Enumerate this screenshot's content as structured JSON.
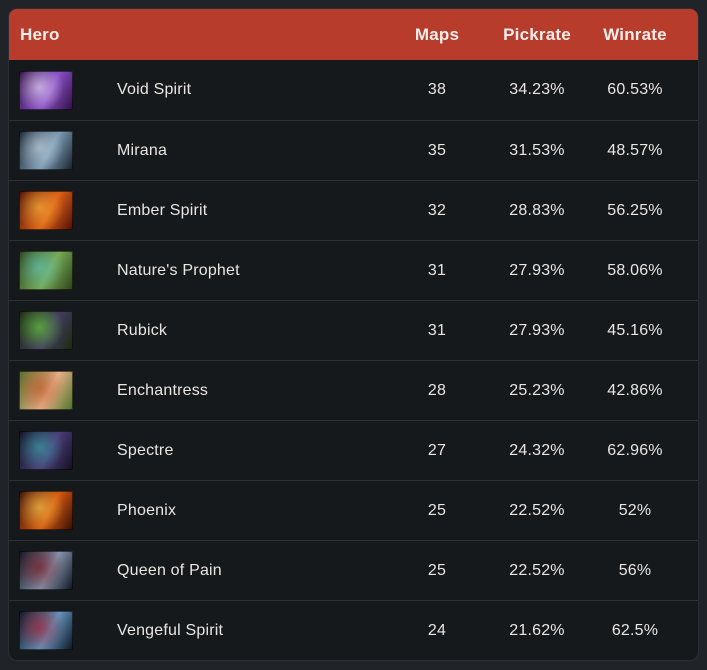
{
  "colors": {
    "page_bg": "#202428",
    "card_bg": "#16191b",
    "card_border": "#2b2f33",
    "header_bg": "#b83c2b",
    "header_text": "#f5edea",
    "row_text": "#e8e6e3",
    "divider": "#2e3236"
  },
  "table": {
    "columns": [
      {
        "label": "Hero"
      },
      {
        "label": "Maps"
      },
      {
        "label": "Pickrate"
      },
      {
        "label": "Winrate"
      }
    ],
    "rows": [
      {
        "name": "Void Spirit",
        "maps": "38",
        "pickrate": "34.23%",
        "winrate": "60.53%",
        "icon": "void-spirit-portrait-icon",
        "icon_colors": [
          "#2e1040",
          "#8a4fc8",
          "#efdff8"
        ]
      },
      {
        "name": "Mirana",
        "maps": "35",
        "pickrate": "31.53%",
        "winrate": "48.57%",
        "icon": "mirana-portrait-icon",
        "icon_colors": [
          "#16202c",
          "#7e9cb4",
          "#c2d4e2"
        ]
      },
      {
        "name": "Ember Spirit",
        "maps": "32",
        "pickrate": "28.83%",
        "winrate": "56.25%",
        "icon": "ember-spirit-portrait-icon",
        "icon_colors": [
          "#4a0e06",
          "#e06018",
          "#f8b83c"
        ]
      },
      {
        "name": "Nature's Prophet",
        "maps": "31",
        "pickrate": "27.93%",
        "winrate": "58.06%",
        "icon": "natures-prophet-portrait-icon",
        "icon_colors": [
          "#2a4018",
          "#78aa54",
          "#60c4ba"
        ]
      },
      {
        "name": "Rubick",
        "maps": "31",
        "pickrate": "27.93%",
        "winrate": "45.16%",
        "icon": "rubick-portrait-icon",
        "icon_colors": [
          "#1a2a0e",
          "#443c62",
          "#66d438"
        ]
      },
      {
        "name": "Enchantress",
        "maps": "28",
        "pickrate": "25.23%",
        "winrate": "42.86%",
        "icon": "enchantress-portrait-icon",
        "icon_colors": [
          "#4a7229",
          "#e8b088",
          "#c05224"
        ]
      },
      {
        "name": "Spectre",
        "maps": "27",
        "pickrate": "24.32%",
        "winrate": "62.96%",
        "icon": "spectre-portrait-icon",
        "icon_colors": [
          "#120e20",
          "#4c3e78",
          "#3aa8ae"
        ]
      },
      {
        "name": "Phoenix",
        "maps": "25",
        "pickrate": "22.52%",
        "winrate": "52%",
        "icon": "phoenix-portrait-icon",
        "icon_colors": [
          "#330c05",
          "#d45a10",
          "#f8c850"
        ]
      },
      {
        "name": "Queen of Pain",
        "maps": "25",
        "pickrate": "22.52%",
        "winrate": "56%",
        "icon": "queen-of-pain-portrait-icon",
        "icon_colors": [
          "#0c1420",
          "#8694ac",
          "#801622"
        ]
      },
      {
        "name": "Vengeful Spirit",
        "maps": "24",
        "pickrate": "21.62%",
        "winrate": "62.5%",
        "icon": "vengeful-spirit-portrait-icon",
        "icon_colors": [
          "#0a1422",
          "#6694be",
          "#ae2030"
        ]
      }
    ]
  }
}
